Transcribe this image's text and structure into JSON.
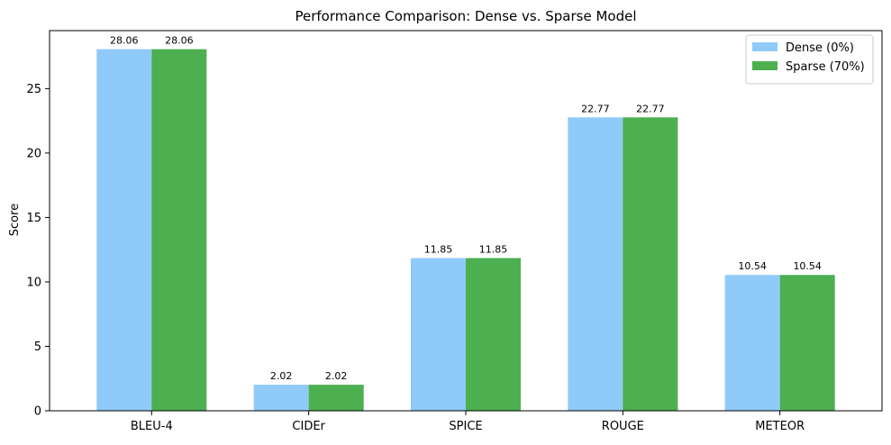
{
  "chart_data": {
    "type": "bar",
    "title": "Performance Comparison: Dense vs. Sparse Model",
    "xlabel": "",
    "ylabel": "Score",
    "ylim": [
      0,
      29.5
    ],
    "yticks": [
      0,
      5,
      10,
      15,
      20,
      25
    ],
    "grid": false,
    "legend_position": "upper right",
    "categories": [
      "BLEU-4",
      "CIDEr",
      "SPICE",
      "ROUGE",
      "METEOR"
    ],
    "series": [
      {
        "name": "Dense (0%)",
        "color": "#90caf9",
        "values": [
          28.06,
          2.02,
          11.85,
          22.77,
          10.54
        ],
        "labels": [
          "28.06",
          "2.02",
          "11.85",
          "22.77",
          "10.54"
        ]
      },
      {
        "name": "Sparse (70%)",
        "color": "#4caf50",
        "values": [
          28.06,
          2.02,
          11.85,
          22.77,
          10.54
        ],
        "labels": [
          "28.06",
          "2.02",
          "11.85",
          "22.77",
          "10.54"
        ]
      }
    ]
  }
}
